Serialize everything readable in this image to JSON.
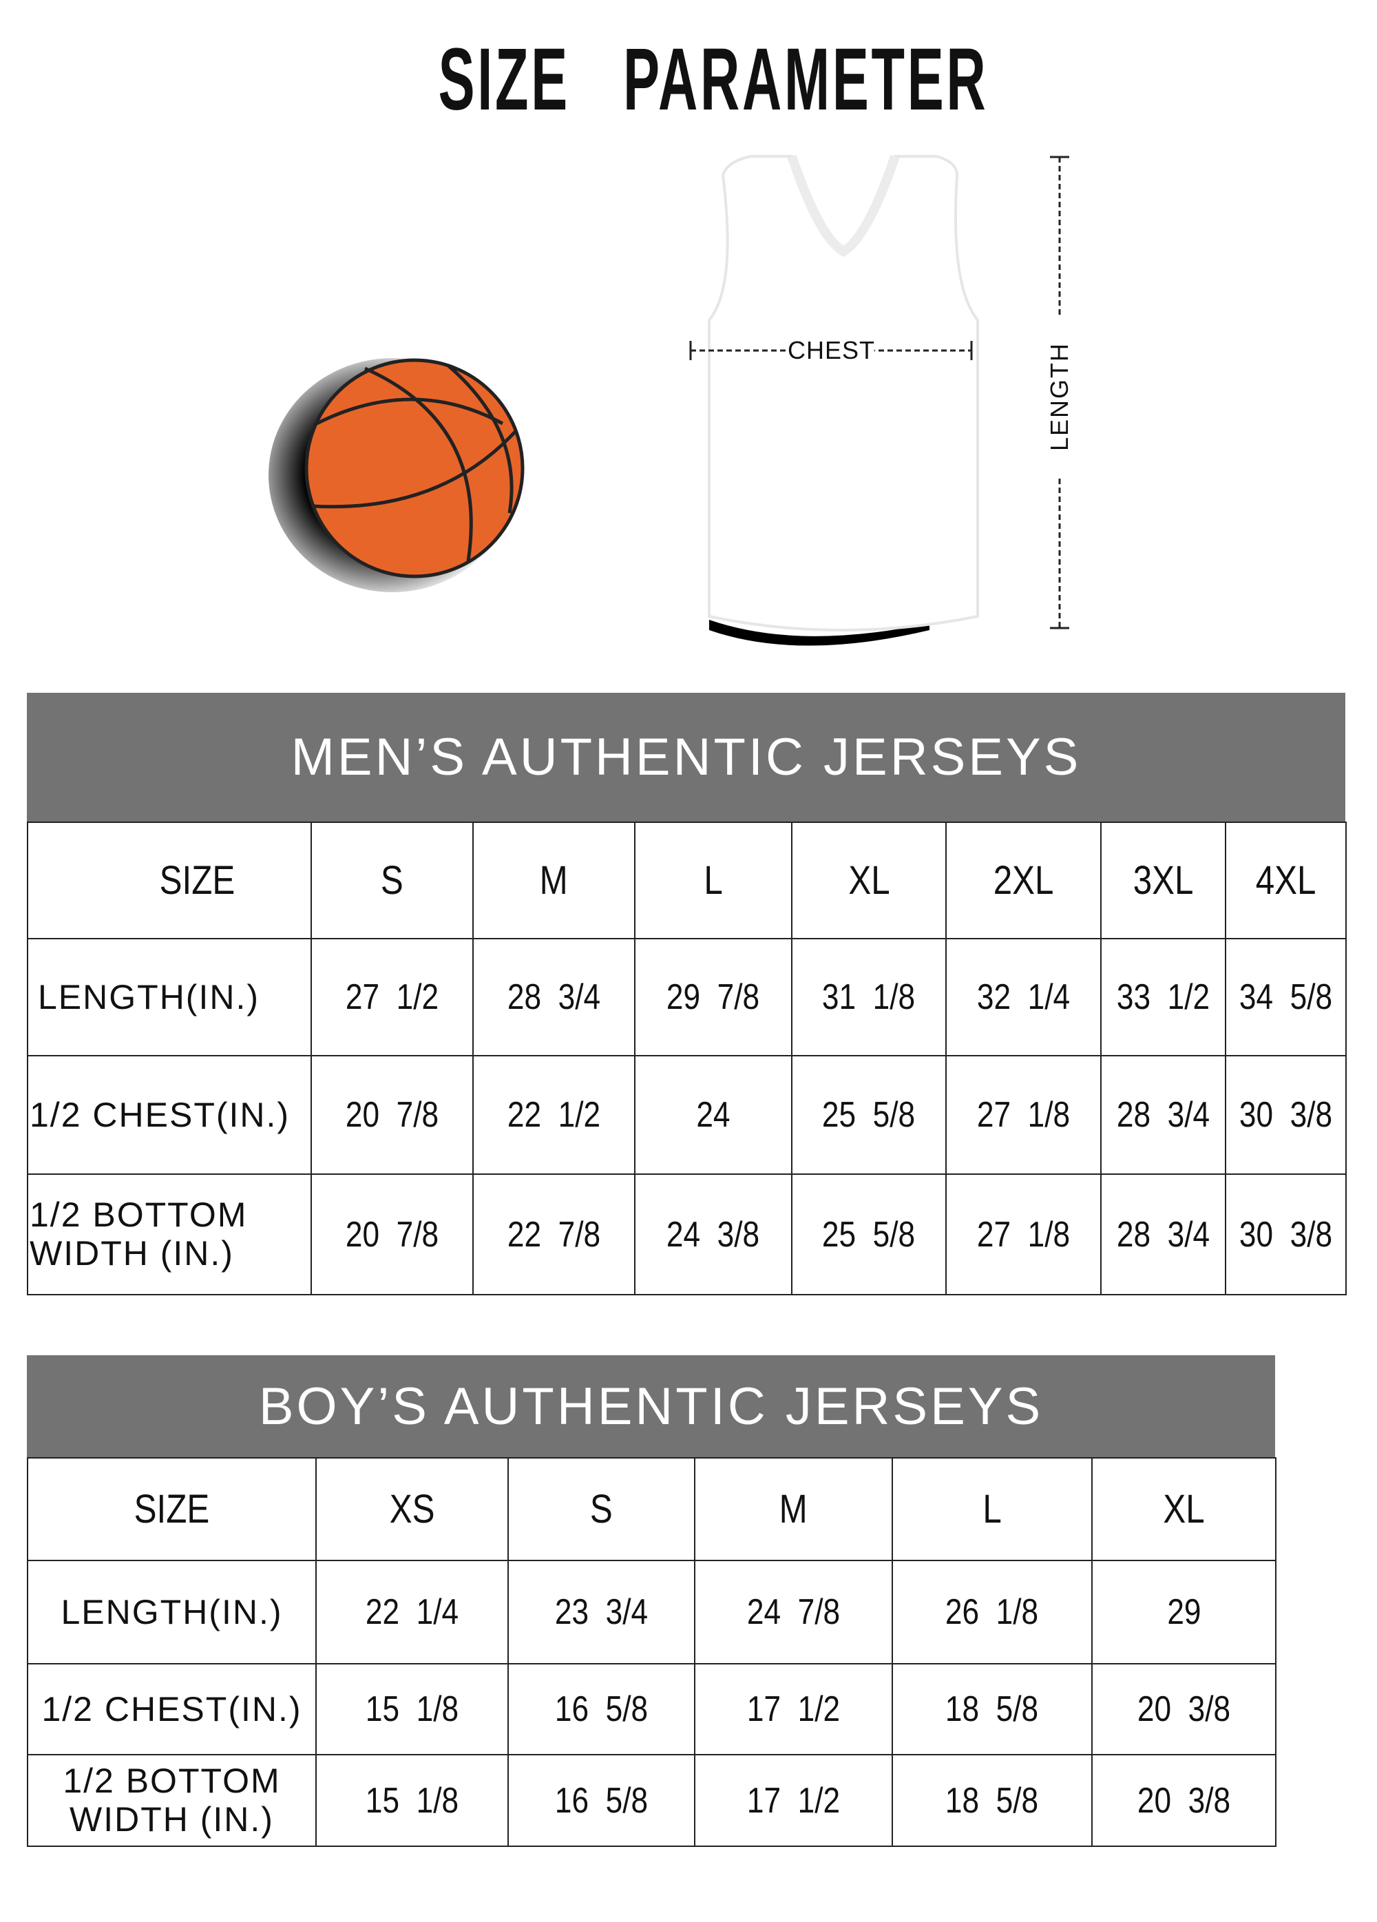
{
  "title": "SIZE   PARAMETER",
  "diagram": {
    "chest_label": "CHEST",
    "length_label": "LENGTH"
  },
  "colors": {
    "banner": "#737373",
    "ball": "#e8652a"
  },
  "men": {
    "heading": "MEN’S AUTHENTIC JERSEYS",
    "size_label": "SIZE",
    "sizes": [
      "S",
      "M",
      "L",
      "XL",
      "2XL",
      "3XL",
      "4XL"
    ],
    "rows": [
      {
        "label": "LENGTH(IN.)",
        "values": [
          "27  1/2",
          "28  3/4",
          "29  7/8",
          "31  1/8",
          "32  1/4",
          "33  1/2",
          "34  5/8"
        ]
      },
      {
        "label": "1/2 CHEST(IN.)",
        "values": [
          "20  7/8",
          "22  1/2",
          "24",
          "25  5/8",
          "27  1/8",
          "28  3/4",
          "30  3/8"
        ]
      },
      {
        "label": "1/2 BOTTOM WIDTH  (IN.)",
        "values": [
          "20  7/8",
          "22  7/8",
          "24  3/8",
          "25  5/8",
          "27  1/8",
          "28  3/4",
          "30  3/8"
        ]
      }
    ]
  },
  "boys": {
    "heading": "BOY’S AUTHENTIC JERSEYS",
    "size_label": "SIZE",
    "sizes": [
      "XS",
      "S",
      "M",
      "L",
      "XL"
    ],
    "rows": [
      {
        "label": "LENGTH(IN.)",
        "values": [
          "22  1/4",
          "23  3/4",
          "24  7/8",
          "26  1/8",
          "29"
        ]
      },
      {
        "label": "1/2 CHEST(IN.)",
        "values": [
          "15  1/8",
          "16  5/8",
          "17  1/2",
          "18  5/8",
          "20  3/8"
        ]
      },
      {
        "label": "1/2 BOTTOM WIDTH  (IN.)",
        "values": [
          "15  1/8",
          "16  5/8",
          "17  1/2",
          "18  5/8",
          "20  3/8"
        ]
      }
    ]
  }
}
